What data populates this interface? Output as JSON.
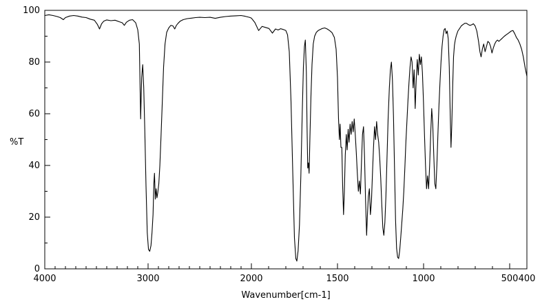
{
  "chart_data": {
    "type": "line",
    "title": "",
    "xlabel": "Wavenumber[cm-1]",
    "ylabel": "%T",
    "line_color": "#000000",
    "background": "#ffffff",
    "legend": "none",
    "grid": false,
    "axis": {
      "x_max": 4000,
      "x_break": 2000,
      "x_min": 400,
      "x_ticks": [
        4000,
        3000,
        2000,
        1500,
        1000,
        500,
        400
      ],
      "x_minor_step": 100,
      "y_min": 0,
      "y_max": 100,
      "y_ticks": [
        0,
        20,
        40,
        60,
        80,
        100
      ],
      "y_minor_step": 10
    },
    "points": [
      [
        4000,
        98
      ],
      [
        3960,
        98.3
      ],
      [
        3920,
        98
      ],
      [
        3880,
        97.6
      ],
      [
        3850,
        97.2
      ],
      [
        3820,
        96.4
      ],
      [
        3800,
        97.2
      ],
      [
        3760,
        97.8
      ],
      [
        3720,
        98
      ],
      [
        3680,
        97.8
      ],
      [
        3640,
        97.4
      ],
      [
        3600,
        97.2
      ],
      [
        3560,
        96.6
      ],
      [
        3520,
        96.2
      ],
      [
        3490,
        94.5
      ],
      [
        3470,
        92.8
      ],
      [
        3450,
        94.8
      ],
      [
        3430,
        95.8
      ],
      [
        3400,
        96.3
      ],
      [
        3360,
        96
      ],
      [
        3320,
        96.2
      ],
      [
        3280,
        95.6
      ],
      [
        3250,
        95.2
      ],
      [
        3230,
        94.2
      ],
      [
        3210,
        95.4
      ],
      [
        3180,
        96.2
      ],
      [
        3150,
        96.4
      ],
      [
        3120,
        95.2
      ],
      [
        3100,
        92.5
      ],
      [
        3085,
        87
      ],
      [
        3072,
        58
      ],
      [
        3062,
        74
      ],
      [
        3052,
        79
      ],
      [
        3042,
        70
      ],
      [
        3032,
        54
      ],
      [
        3020,
        32
      ],
      [
        3008,
        14
      ],
      [
        2996,
        7.5
      ],
      [
        2984,
        6.8
      ],
      [
        2972,
        9
      ],
      [
        2962,
        14
      ],
      [
        2952,
        21
      ],
      [
        2944,
        33
      ],
      [
        2938,
        37
      ],
      [
        2930,
        27
      ],
      [
        2922,
        31
      ],
      [
        2914,
        27.5
      ],
      [
        2906,
        29.5
      ],
      [
        2896,
        33
      ],
      [
        2886,
        40
      ],
      [
        2874,
        52
      ],
      [
        2862,
        65
      ],
      [
        2850,
        78
      ],
      [
        2836,
        87
      ],
      [
        2820,
        91.5
      ],
      [
        2800,
        93.2
      ],
      [
        2780,
        94.2
      ],
      [
        2760,
        94
      ],
      [
        2742,
        92.8
      ],
      [
        2726,
        94.2
      ],
      [
        2710,
        95
      ],
      [
        2690,
        95.8
      ],
      [
        2660,
        96.4
      ],
      [
        2620,
        96.8
      ],
      [
        2580,
        97
      ],
      [
        2540,
        97.2
      ],
      [
        2500,
        97.3
      ],
      [
        2450,
        97.2
      ],
      [
        2400,
        97.3
      ],
      [
        2350,
        96.9
      ],
      [
        2300,
        97.3
      ],
      [
        2250,
        97.6
      ],
      [
        2200,
        97.8
      ],
      [
        2150,
        97.9
      ],
      [
        2100,
        98
      ],
      [
        2060,
        97.7
      ],
      [
        2020,
        97.3
      ],
      [
        2000,
        97
      ],
      [
        1980,
        95.3
      ],
      [
        1958,
        92.2
      ],
      [
        1938,
        93.8
      ],
      [
        1918,
        93.4
      ],
      [
        1898,
        93
      ],
      [
        1878,
        91.2
      ],
      [
        1860,
        92.8
      ],
      [
        1845,
        92.4
      ],
      [
        1830,
        92.9
      ],
      [
        1815,
        92.6
      ],
      [
        1800,
        92.2
      ],
      [
        1790,
        90.5
      ],
      [
        1780,
        84
      ],
      [
        1770,
        65
      ],
      [
        1760,
        38
      ],
      [
        1750,
        12
      ],
      [
        1742,
        4
      ],
      [
        1736,
        3
      ],
      [
        1729,
        7
      ],
      [
        1721,
        17
      ],
      [
        1713,
        36
      ],
      [
        1705,
        60
      ],
      [
        1698,
        78
      ],
      [
        1692,
        86
      ],
      [
        1687,
        88.5
      ],
      [
        1681,
        76
      ],
      [
        1677,
        55
      ],
      [
        1673,
        39
      ],
      [
        1669,
        41
      ],
      [
        1665,
        37
      ],
      [
        1660,
        51
      ],
      [
        1654,
        67
      ],
      [
        1648,
        79
      ],
      [
        1641,
        87
      ],
      [
        1633,
        90
      ],
      [
        1623,
        91.5
      ],
      [
        1612,
        92.2
      ],
      [
        1600,
        92.6
      ],
      [
        1588,
        93
      ],
      [
        1574,
        93.2
      ],
      [
        1560,
        92.8
      ],
      [
        1546,
        92.2
      ],
      [
        1532,
        91.4
      ],
      [
        1518,
        89.5
      ],
      [
        1508,
        85
      ],
      [
        1500,
        74
      ],
      [
        1494,
        58
      ],
      [
        1489,
        50
      ],
      [
        1485,
        56
      ],
      [
        1480,
        47
      ],
      [
        1475,
        47
      ],
      [
        1470,
        32
      ],
      [
        1465,
        21
      ],
      [
        1460,
        30
      ],
      [
        1455,
        44
      ],
      [
        1449,
        52
      ],
      [
        1444,
        46
      ],
      [
        1438,
        54
      ],
      [
        1433,
        49
      ],
      [
        1427,
        56
      ],
      [
        1421,
        52
      ],
      [
        1415,
        57
      ],
      [
        1409,
        53
      ],
      [
        1403,
        58
      ],
      [
        1397,
        52
      ],
      [
        1391,
        45
      ],
      [
        1385,
        37
      ],
      [
        1379,
        30
      ],
      [
        1373,
        34
      ],
      [
        1367,
        29
      ],
      [
        1361,
        41
      ],
      [
        1355,
        52
      ],
      [
        1349,
        55
      ],
      [
        1343,
        43
      ],
      [
        1337,
        26
      ],
      [
        1331,
        13
      ],
      [
        1326,
        21
      ],
      [
        1321,
        28
      ],
      [
        1315,
        31
      ],
      [
        1309,
        21
      ],
      [
        1303,
        26
      ],
      [
        1297,
        37
      ],
      [
        1291,
        47
      ],
      [
        1285,
        55
      ],
      [
        1279,
        50
      ],
      [
        1273,
        57
      ],
      [
        1267,
        52
      ],
      [
        1261,
        49
      ],
      [
        1255,
        43
      ],
      [
        1249,
        35
      ],
      [
        1243,
        25
      ],
      [
        1237,
        16
      ],
      [
        1231,
        13
      ],
      [
        1225,
        18
      ],
      [
        1219,
        28
      ],
      [
        1213,
        42
      ],
      [
        1206,
        58
      ],
      [
        1199,
        70
      ],
      [
        1193,
        77
      ],
      [
        1187,
        80
      ],
      [
        1181,
        73
      ],
      [
        1175,
        59
      ],
      [
        1169,
        39
      ],
      [
        1163,
        19
      ],
      [
        1157,
        8
      ],
      [
        1151,
        4.5
      ],
      [
        1145,
        4
      ],
      [
        1139,
        7
      ],
      [
        1133,
        12
      ],
      [
        1127,
        17.5
      ],
      [
        1121,
        23
      ],
      [
        1115,
        30
      ],
      [
        1109,
        39
      ],
      [
        1103,
        49
      ],
      [
        1097,
        57
      ],
      [
        1091,
        65
      ],
      [
        1085,
        72
      ],
      [
        1079,
        78
      ],
      [
        1073,
        82
      ],
      [
        1067,
        80
      ],
      [
        1061,
        70
      ],
      [
        1055,
        77
      ],
      [
        1049,
        62
      ],
      [
        1043,
        73
      ],
      [
        1037,
        81
      ],
      [
        1031,
        75
      ],
      [
        1025,
        83
      ],
      [
        1019,
        79
      ],
      [
        1013,
        82
      ],
      [
        1007,
        76
      ],
      [
        1001,
        65
      ],
      [
        995,
        52
      ],
      [
        989,
        40
      ],
      [
        983,
        31
      ],
      [
        977,
        36
      ],
      [
        971,
        31
      ],
      [
        965,
        40
      ],
      [
        959,
        52
      ],
      [
        953,
        62
      ],
      [
        947,
        56
      ],
      [
        941,
        44
      ],
      [
        935,
        33
      ],
      [
        929,
        31
      ],
      [
        923,
        40
      ],
      [
        917,
        52
      ],
      [
        911,
        63
      ],
      [
        905,
        72
      ],
      [
        899,
        80
      ],
      [
        893,
        86
      ],
      [
        887,
        90
      ],
      [
        881,
        92.5
      ],
      [
        875,
        93
      ],
      [
        869,
        91
      ],
      [
        863,
        92
      ],
      [
        857,
        89
      ],
      [
        851,
        78
      ],
      [
        846,
        62
      ],
      [
        841,
        47
      ],
      [
        836,
        56
      ],
      [
        831,
        71
      ],
      [
        826,
        82
      ],
      [
        821,
        86.5
      ],
      [
        816,
        88.5
      ],
      [
        811,
        90
      ],
      [
        806,
        91
      ],
      [
        801,
        92
      ],
      [
        791,
        93
      ],
      [
        781,
        94
      ],
      [
        771,
        94.5
      ],
      [
        761,
        95
      ],
      [
        751,
        95
      ],
      [
        741,
        94.5
      ],
      [
        731,
        94.2
      ],
      [
        721,
        94.4
      ],
      [
        711,
        94.8
      ],
      [
        701,
        94
      ],
      [
        691,
        92
      ],
      [
        681,
        88
      ],
      [
        673,
        84
      ],
      [
        666,
        82
      ],
      [
        659,
        85
      ],
      [
        651,
        87
      ],
      [
        643,
        84
      ],
      [
        635,
        86
      ],
      [
        627,
        88
      ],
      [
        619,
        87.5
      ],
      [
        611,
        86
      ],
      [
        603,
        83.5
      ],
      [
        595,
        85.5
      ],
      [
        587,
        87
      ],
      [
        579,
        88
      ],
      [
        571,
        88.5
      ],
      [
        563,
        88
      ],
      [
        555,
        88.5
      ],
      [
        547,
        89
      ],
      [
        539,
        89.5
      ],
      [
        531,
        90
      ],
      [
        521,
        90.5
      ],
      [
        511,
        91
      ],
      [
        501,
        91.5
      ],
      [
        491,
        92
      ],
      [
        481,
        92.2
      ],
      [
        471,
        91
      ],
      [
        461,
        89.5
      ],
      [
        451,
        88.5
      ],
      [
        441,
        87
      ],
      [
        431,
        85
      ],
      [
        421,
        82
      ],
      [
        411,
        78
      ],
      [
        400,
        74.5
      ]
    ]
  }
}
